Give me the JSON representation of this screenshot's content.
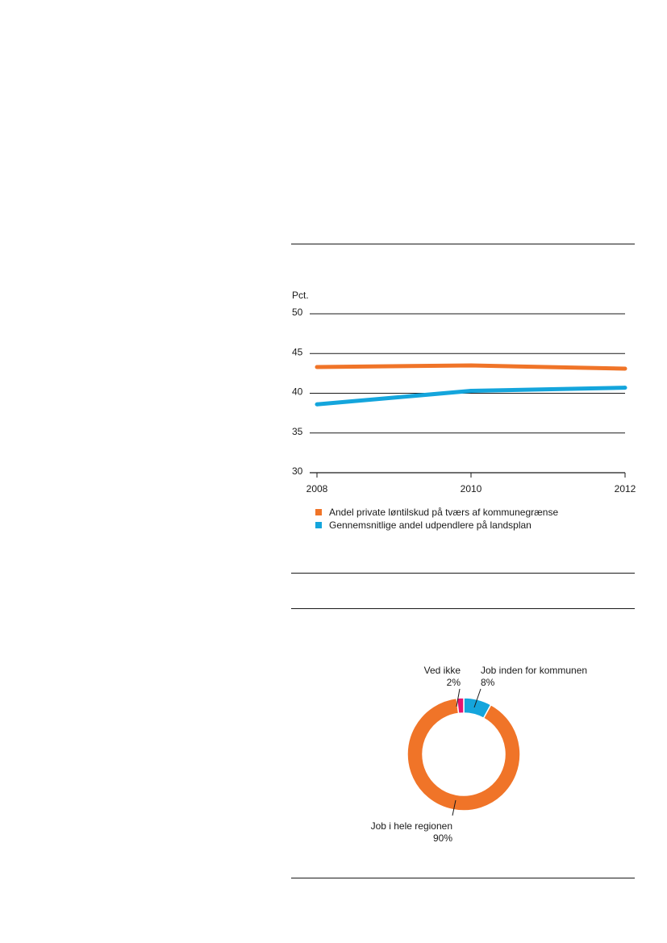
{
  "colors": {
    "orange": "#f07428",
    "blue": "#14a5dc",
    "magenta": "#e6146e",
    "text": "#1a1a1a"
  },
  "chart_data": [
    {
      "type": "line",
      "ylabel": "Pct.",
      "ylim": [
        30,
        50
      ],
      "yticks": [
        30,
        35,
        40,
        45,
        50
      ],
      "x": [
        2008,
        2010,
        2012
      ],
      "xtick_labels": [
        "2008",
        "2010",
        "2012"
      ],
      "grid": true,
      "legend_position": "bottom",
      "series": [
        {
          "name": "Andel private løntilskud på tværs af kommunegrænse",
          "color": "#f07428",
          "values": [
            43.3,
            43.5,
            43.1
          ]
        },
        {
          "name": "Gennemsnitlige andel udpendlere på landsplan",
          "color": "#14a5dc",
          "values": [
            38.6,
            40.3,
            40.7
          ]
        }
      ]
    },
    {
      "type": "pie",
      "style": "donut",
      "slices": [
        {
          "label": "Job inden for kommunen",
          "value": 8,
          "value_label": "8%",
          "color": "#14a5dc"
        },
        {
          "label": "Job i hele regionen",
          "value": 90,
          "value_label": "90%",
          "color": "#f07428"
        },
        {
          "label": "Ved ikke",
          "value": 2,
          "value_label": "2%",
          "color": "#e6146e"
        }
      ]
    }
  ]
}
